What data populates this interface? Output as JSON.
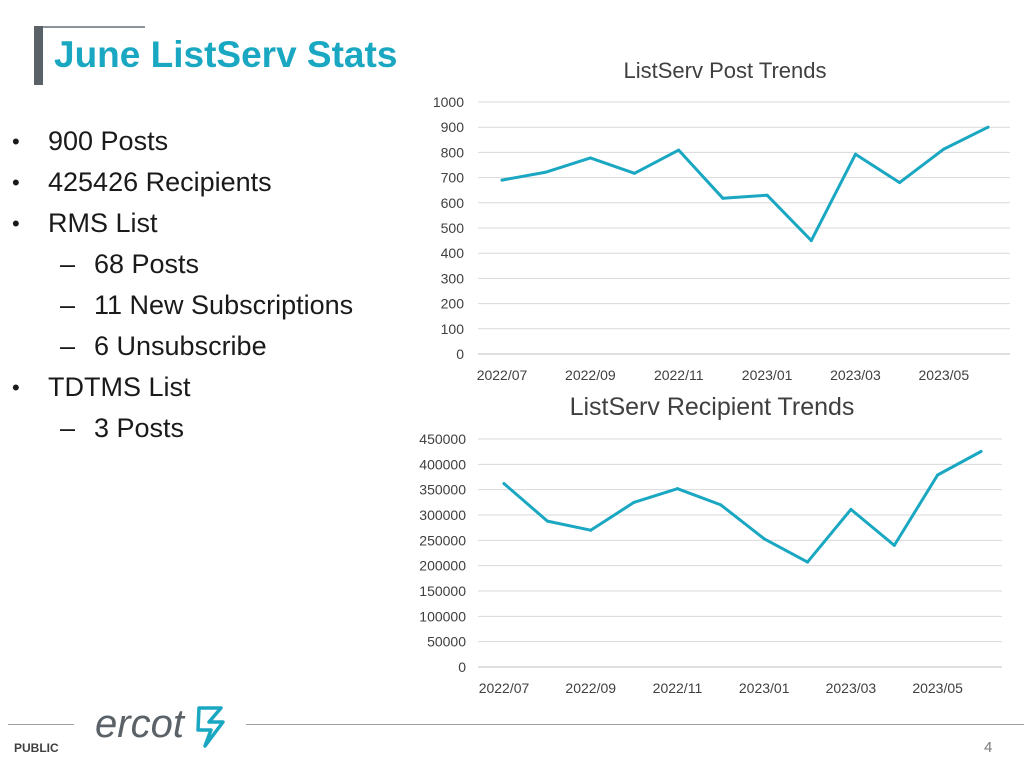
{
  "slide": {
    "title": "June ListServ Stats",
    "footer_label": "PUBLIC",
    "page_number": "4",
    "logo_text": "ercot",
    "colors": {
      "accent": "#1aa7c2",
      "line": "#1aa7c2",
      "grid": "#d9d9d9"
    }
  },
  "bullets": [
    {
      "level": 1,
      "marker": "•",
      "text": "900 Posts"
    },
    {
      "level": 1,
      "marker": "•",
      "text": "425426 Recipients"
    },
    {
      "level": 1,
      "marker": "•",
      "text": "RMS List"
    },
    {
      "level": 2,
      "marker": "–",
      "text": "68 Posts"
    },
    {
      "level": 2,
      "marker": "–",
      "text": "11 New Subscriptions"
    },
    {
      "level": 2,
      "marker": "–",
      "text": "6 Unsubscribe"
    },
    {
      "level": 1,
      "marker": "•",
      "text": "TDTMS List"
    },
    {
      "level": 2,
      "marker": "–",
      "text": "3 Posts"
    }
  ],
  "chart_data": [
    {
      "type": "line",
      "title": "ListServ Post Trends",
      "xlabel": "",
      "ylabel": "",
      "x": [
        "2022/07",
        "2022/08",
        "2022/09",
        "2022/10",
        "2022/11",
        "2022/12",
        "2023/01",
        "2023/02",
        "2023/03",
        "2023/04",
        "2023/05",
        "2023/06"
      ],
      "x_tick_labels": [
        "2022/07",
        "2022/09",
        "2022/11",
        "2023/01",
        "2023/03",
        "2023/05"
      ],
      "series": [
        {
          "values": [
            690,
            722,
            778,
            717,
            809,
            618,
            630,
            450,
            793,
            680,
            813,
            900
          ]
        }
      ],
      "ylim": [
        0,
        1000
      ],
      "y_ticks": [
        "0",
        "100",
        "200",
        "300",
        "400",
        "500",
        "600",
        "700",
        "800",
        "900",
        "1000"
      ],
      "grid": true,
      "legend": "none"
    },
    {
      "type": "line",
      "title": "ListServ Recipient Trends",
      "xlabel": "",
      "ylabel": "",
      "x": [
        "2022/07",
        "2022/08",
        "2022/09",
        "2022/10",
        "2022/11",
        "2022/12",
        "2023/01",
        "2023/02",
        "2023/03",
        "2023/04",
        "2023/05",
        "2023/06"
      ],
      "x_tick_labels": [
        "2022/07",
        "2022/09",
        "2022/11",
        "2023/01",
        "2023/03",
        "2023/05"
      ],
      "series": [
        {
          "values": [
            362000,
            288000,
            270000,
            325000,
            352000,
            320000,
            253000,
            207000,
            311000,
            240000,
            379000,
            425426
          ]
        }
      ],
      "ylim": [
        0,
        450000
      ],
      "y_ticks": [
        "0",
        "50000",
        "100000",
        "150000",
        "200000",
        "250000",
        "300000",
        "350000",
        "400000",
        "450000"
      ],
      "grid": true,
      "legend": "none"
    }
  ]
}
